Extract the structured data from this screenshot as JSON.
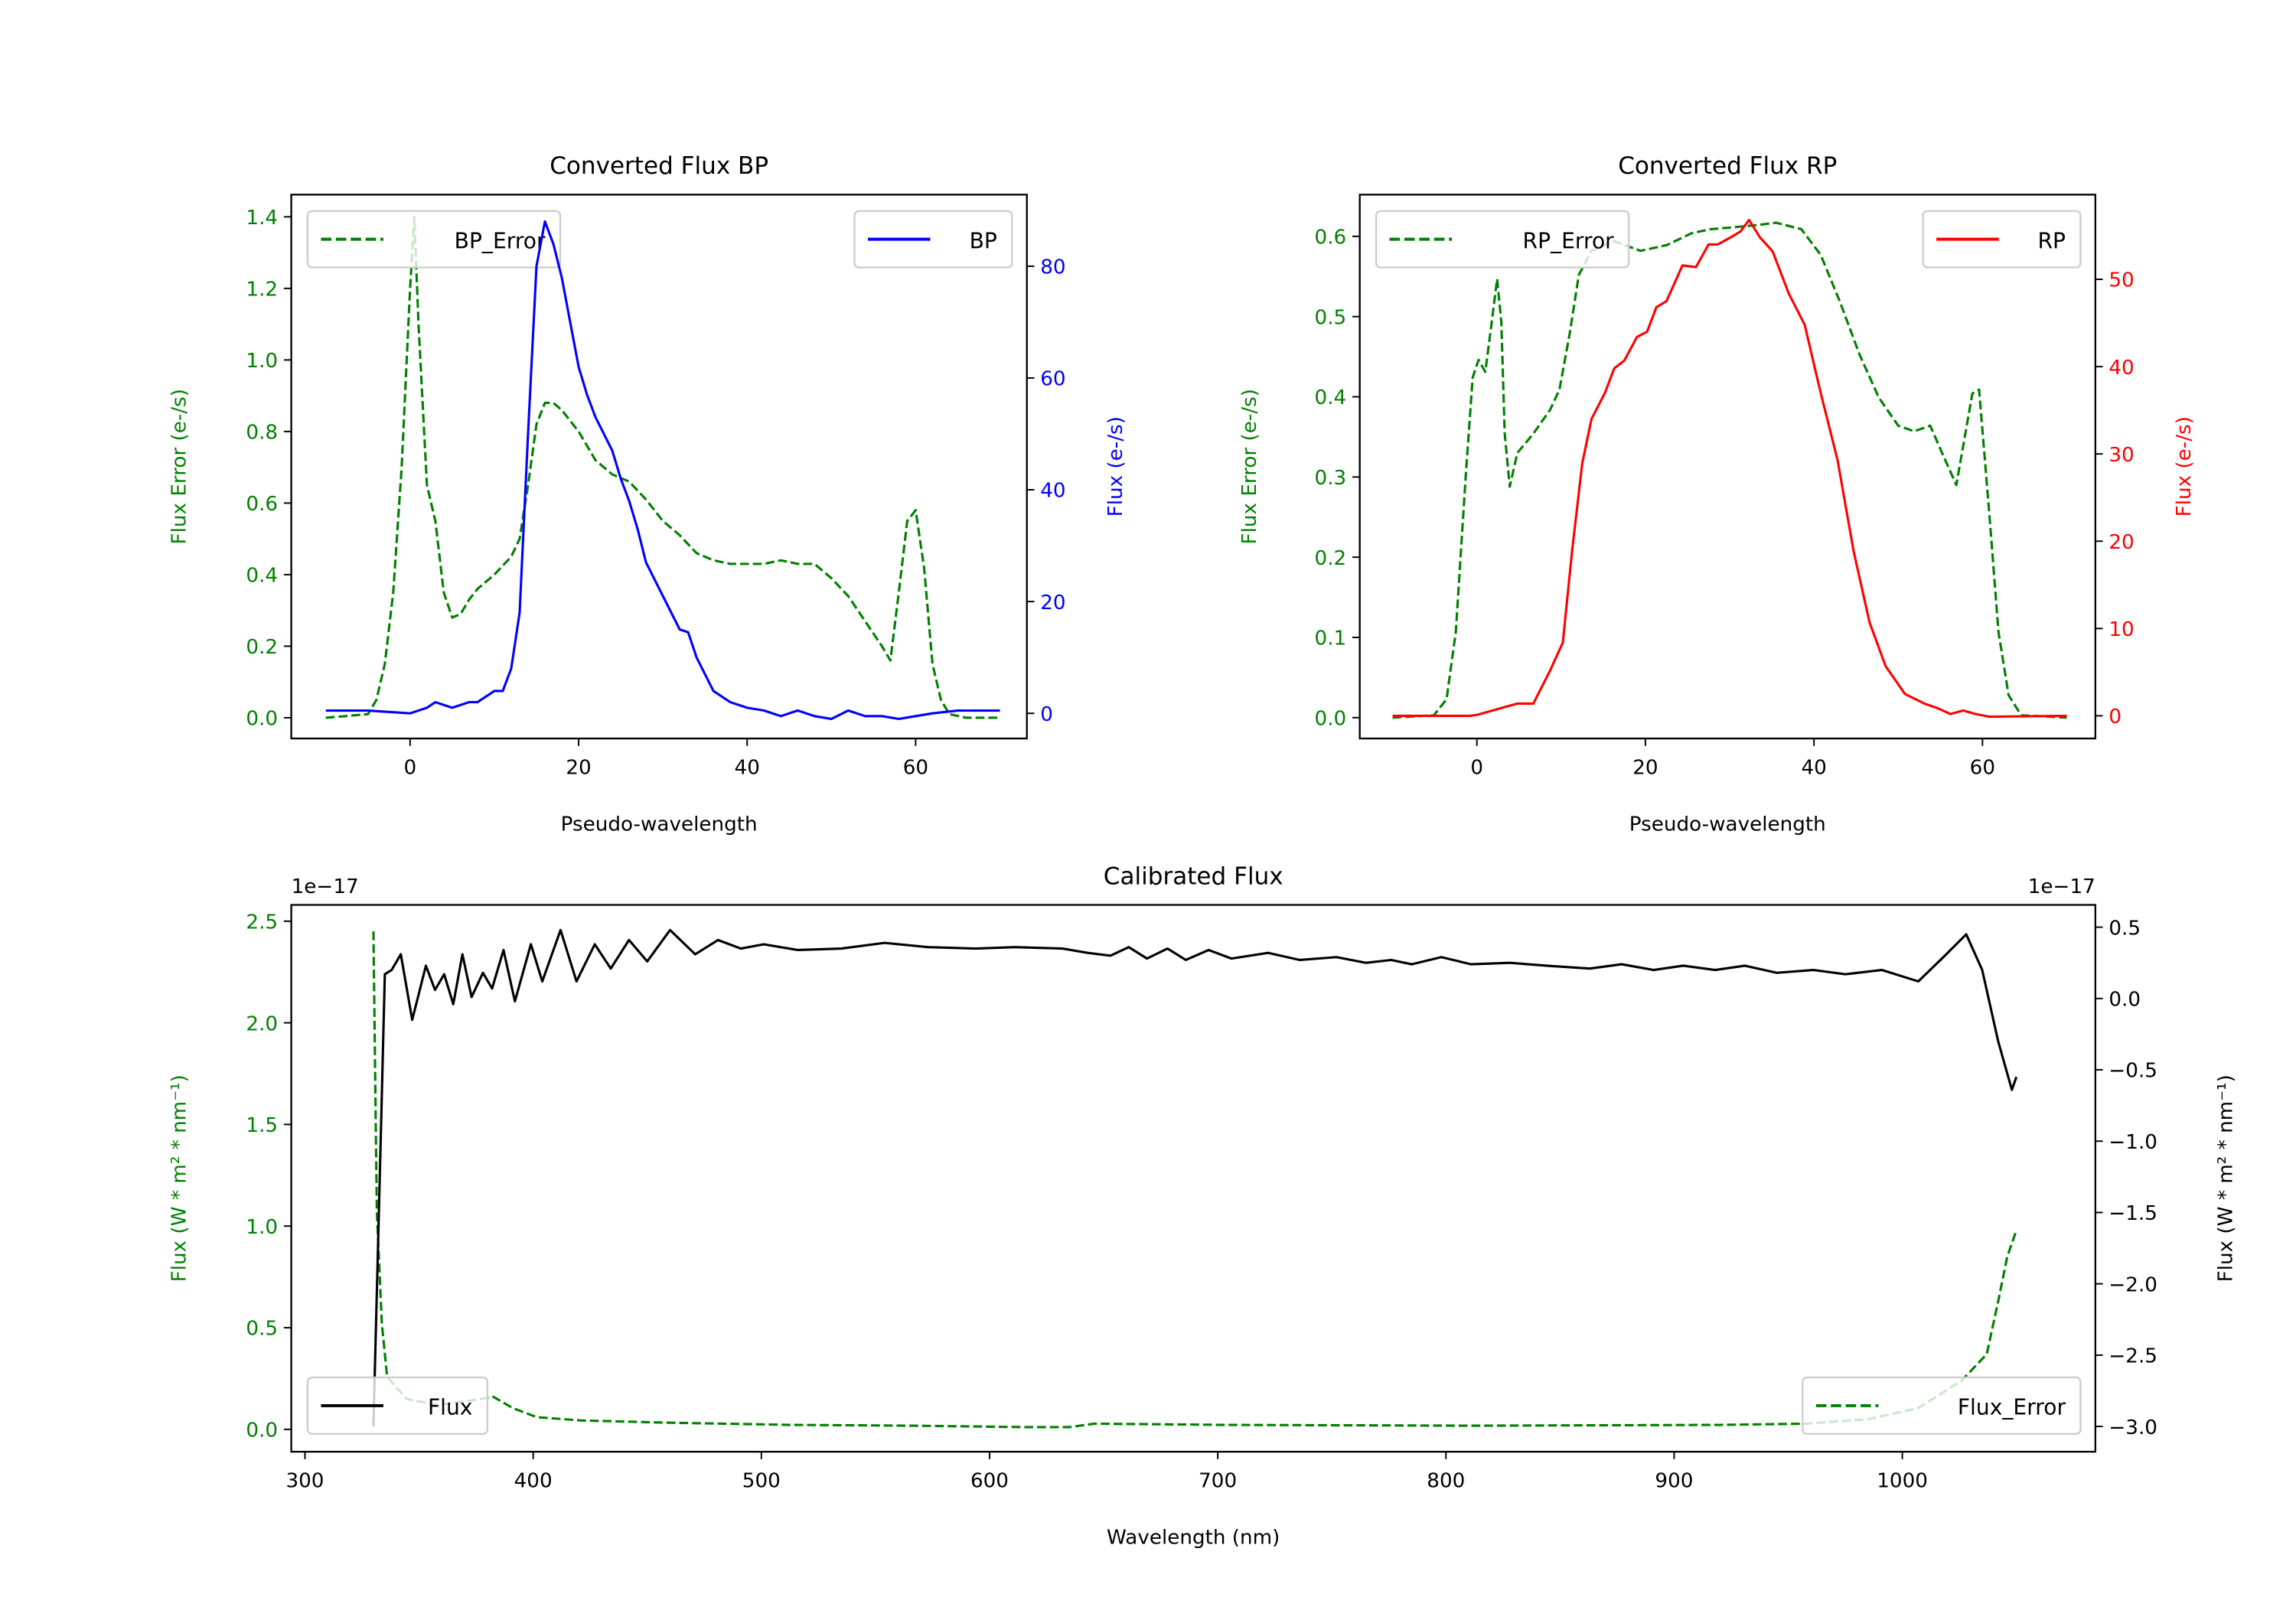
{
  "colors": {
    "green": "#008000",
    "blue": "#0000ff",
    "red": "#ff0000",
    "black": "#000000"
  },
  "chart_data": [
    {
      "type": "line",
      "title": "Converted Flux BP",
      "xlabel": "Pseudo-wavelength",
      "xlim": [
        -14.1,
        73.2
      ],
      "xticks": [
        0,
        20,
        40,
        60
      ],
      "left_axis": {
        "label": "Flux Error (e-/s)",
        "color": "#008000",
        "ylim": [
          -0.058,
          1.462
        ],
        "ticks": [
          0.0,
          0.2,
          0.4,
          0.6,
          0.8,
          1.0,
          1.2,
          1.4
        ],
        "tick_labels": [
          "0.0",
          "0.2",
          "0.4",
          "0.6",
          "0.8",
          "1.0",
          "1.2",
          "1.4"
        ]
      },
      "right_axis": {
        "label": "Flux (e-/s)",
        "color": "#0000ff",
        "ylim": [
          -4.5,
          92.8
        ],
        "ticks": [
          0,
          20,
          40,
          60,
          80
        ],
        "tick_labels": [
          "0",
          "20",
          "40",
          "60",
          "80"
        ]
      },
      "series": [
        {
          "name": "BP_Error",
          "axis": "left",
          "color": "#008000",
          "style": "dashed",
          "legend": "upper-left",
          "x": [
            -10,
            -5,
            -4,
            -3,
            -2,
            -1,
            0,
            0.5,
            1,
            2,
            3,
            4,
            5,
            6,
            7,
            8,
            10,
            12,
            13,
            14,
            15,
            16,
            17,
            18,
            20,
            22,
            24,
            26,
            28,
            30,
            32,
            34,
            36,
            38,
            40,
            42,
            44,
            46,
            48,
            50,
            52,
            54,
            56,
            57,
            58,
            59,
            60,
            61,
            62,
            63,
            64,
            66,
            70
          ],
          "y": [
            0,
            0.01,
            0.05,
            0.15,
            0.35,
            0.7,
            1.2,
            1.4,
            1.1,
            0.65,
            0.55,
            0.35,
            0.28,
            0.29,
            0.33,
            0.36,
            0.4,
            0.45,
            0.5,
            0.65,
            0.82,
            0.88,
            0.88,
            0.86,
            0.8,
            0.72,
            0.68,
            0.66,
            0.61,
            0.55,
            0.51,
            0.46,
            0.44,
            0.43,
            0.43,
            0.43,
            0.44,
            0.43,
            0.43,
            0.39,
            0.34,
            0.27,
            0.2,
            0.16,
            0.35,
            0.55,
            0.58,
            0.42,
            0.15,
            0.05,
            0.01,
            0,
            0
          ]
        },
        {
          "name": "BP",
          "axis": "right",
          "color": "#0000ff",
          "style": "solid",
          "legend": "upper-right",
          "x": [
            -10,
            -5,
            0,
            2,
            3,
            5,
            7,
            8,
            10,
            11,
            12,
            13,
            14,
            15,
            16,
            17,
            18,
            19,
            20,
            21,
            22,
            24,
            25,
            26,
            27,
            28,
            30,
            32,
            33,
            34,
            36,
            38,
            40,
            42,
            44,
            46,
            48,
            50,
            52,
            54,
            56,
            58,
            60,
            62,
            65,
            70
          ],
          "y": [
            0.5,
            0.5,
            0,
            1,
            2,
            1,
            2,
            2,
            4,
            4,
            8,
            18,
            50,
            80,
            88,
            84,
            78,
            70,
            62,
            57,
            53,
            47,
            42,
            38,
            33,
            27,
            21,
            15,
            14.5,
            10,
            4,
            2,
            1,
            0.5,
            -0.5,
            0.5,
            -0.5,
            -1,
            0.5,
            -0.5,
            -0.5,
            -1,
            -0.5,
            0,
            0.5,
            0.5
          ]
        }
      ]
    },
    {
      "type": "line",
      "title": "Converted Flux RP",
      "xlabel": "Pseudo-wavelength",
      "xlim": [
        -13.9,
        73.4
      ],
      "xticks": [
        0,
        20,
        40,
        60
      ],
      "left_axis": {
        "label": "Flux Error (e-/s)",
        "color": "#008000",
        "ylim": [
          -0.026,
          0.652
        ],
        "ticks": [
          0.0,
          0.1,
          0.2,
          0.3,
          0.4,
          0.5,
          0.6
        ],
        "tick_labels": [
          "0.0",
          "0.1",
          "0.2",
          "0.3",
          "0.4",
          "0.5",
          "0.6"
        ]
      },
      "right_axis": {
        "label": "Flux (e-/s)",
        "color": "#ff0000",
        "ylim": [
          -2.6,
          59.7
        ],
        "ticks": [
          0,
          10,
          20,
          30,
          40,
          50
        ],
        "tick_labels": [
          "0",
          "10",
          "20",
          "30",
          "40",
          "50"
        ]
      },
      "series": [
        {
          "name": "RP_Error",
          "axis": "left",
          "color": "#008000",
          "style": "dashed",
          "legend": "upper-left",
          "x": [
            -10,
            -5.1,
            -3.6,
            -2.5,
            -1.3,
            -0.5,
            0.2,
            1,
            1.7,
            2.4,
            2.9,
            3.3,
            3.9,
            4.8,
            6.7,
            8.7,
            9.8,
            11,
            12.1,
            13.6,
            16.3,
            19.4,
            22.5,
            25.5,
            27.8,
            30.1,
            33.2,
            35.5,
            38.5,
            40.8,
            43.1,
            45.4,
            47.7,
            50,
            51.9,
            53.8,
            55,
            56.9,
            58.8,
            59.6,
            60.8,
            61.9,
            63.1,
            64.6,
            70
          ],
          "y": [
            0,
            0.003,
            0.023,
            0.107,
            0.305,
            0.424,
            0.446,
            0.431,
            0.488,
            0.547,
            0.493,
            0.354,
            0.288,
            0.33,
            0.354,
            0.384,
            0.409,
            0.478,
            0.552,
            0.582,
            0.594,
            0.582,
            0.589,
            0.604,
            0.609,
            0.611,
            0.614,
            0.617,
            0.609,
            0.577,
            0.518,
            0.453,
            0.399,
            0.364,
            0.357,
            0.364,
            0.335,
            0.29,
            0.404,
            0.409,
            0.256,
            0.107,
            0.028,
            0.003,
            0
          ]
        },
        {
          "name": "RP",
          "axis": "right",
          "color": "#ff0000",
          "style": "solid",
          "legend": "upper-right",
          "x": [
            -10,
            -0.9,
            0,
            4.8,
            6.7,
            8.7,
            10.2,
            11.3,
            12.5,
            13.6,
            15.2,
            16.3,
            17.5,
            19,
            20.2,
            21.3,
            22.5,
            24.4,
            26,
            27.5,
            28.6,
            30.1,
            31.3,
            32.3,
            33.6,
            35.1,
            37,
            38.9,
            40.8,
            42.8,
            44.7,
            46.6,
            48.5,
            50.8,
            53.1,
            54.6,
            56.2,
            57.7,
            59.2,
            60.8,
            70
          ],
          "y": [
            0,
            0,
            0.1,
            1.4,
            1.4,
            5.2,
            8.4,
            18.9,
            28.9,
            34,
            37,
            39.8,
            40.7,
            43.4,
            44,
            46.8,
            47.5,
            51.6,
            51.4,
            54,
            54,
            54.8,
            55.5,
            56.8,
            54.8,
            53.2,
            48.4,
            44.8,
            37,
            29.3,
            18.9,
            10.7,
            5.7,
            2.5,
            1.4,
            0.9,
            0.2,
            0.6,
            0.2,
            -0.1,
            0
          ]
        }
      ]
    },
    {
      "type": "line",
      "title": "Calibrated Flux",
      "xlabel": "Wavelength (nm)",
      "xlim": [
        294,
        1084.6
      ],
      "xticks": [
        300,
        400,
        500,
        600,
        700,
        800,
        900,
        1000
      ],
      "left_axis": {
        "label": "Flux (W * m² * nm⁻¹)",
        "color": "#008000",
        "offset_text": "1e−17",
        "ylim": [
          -0.11,
          2.58
        ],
        "ticks": [
          0,
          0.5,
          1.0,
          1.5,
          2.0,
          2.5
        ],
        "tick_labels": [
          "0.0",
          "0.5",
          "1.0",
          "1.5",
          "2.0",
          "2.5"
        ]
      },
      "right_axis": {
        "label": "Flux (W * m² * nm⁻¹)",
        "color": "#000000",
        "offset_text": "1e−17",
        "ylim": [
          -3.177,
          0.656
        ],
        "ticks": [
          0.5,
          0,
          -0.5,
          -1.0,
          -1.5,
          -2.0,
          -2.5,
          -3.0
        ],
        "tick_labels": [
          "0.5",
          "0.0",
          "−0.5",
          "−1.0",
          "−1.5",
          "−2.0",
          "−2.5",
          "−3.0"
        ]
      },
      "series": [
        {
          "name": "Flux",
          "axis": "right",
          "color": "#000000",
          "style": "solid",
          "legend": "lower-left",
          "x": [
            330,
            332.9,
            335,
            338,
            342,
            347,
            353,
            357,
            361,
            365,
            369,
            373,
            378,
            382,
            387,
            392,
            399,
            404,
            412,
            419,
            427,
            434,
            442,
            450,
            460,
            471,
            481,
            491,
            501,
            516,
            535,
            554,
            573,
            594,
            611,
            632,
            643,
            653,
            661,
            669,
            678,
            686,
            696,
            706,
            722,
            736,
            752,
            765,
            776,
            785,
            798,
            811,
            828,
            844,
            863,
            877,
            891,
            904,
            918,
            931,
            945,
            961,
            975,
            991,
            1007,
            1018,
            1028,
            1035,
            1042,
            1048,
            1050
          ],
          "y": [
            -3.0,
            -1.18,
            0.17,
            0.2,
            0.31,
            -0.15,
            0.23,
            0.06,
            0.17,
            -0.04,
            0.31,
            0.01,
            0.18,
            0.07,
            0.34,
            -0.02,
            0.38,
            0.12,
            0.48,
            0.12,
            0.38,
            0.21,
            0.41,
            0.26,
            0.48,
            0.31,
            0.41,
            0.35,
            0.38,
            0.34,
            0.35,
            0.39,
            0.36,
            0.35,
            0.36,
            0.35,
            0.32,
            0.3,
            0.36,
            0.28,
            0.35,
            0.27,
            0.34,
            0.28,
            0.32,
            0.27,
            0.29,
            0.25,
            0.27,
            0.24,
            0.29,
            0.24,
            0.25,
            0.23,
            0.21,
            0.24,
            0.2,
            0.23,
            0.2,
            0.23,
            0.18,
            0.2,
            0.17,
            0.2,
            0.12,
            0.29,
            0.45,
            0.2,
            -0.3,
            -0.64,
            -0.55
          ]
        },
        {
          "name": "Flux_Error",
          "axis": "left",
          "color": "#008000",
          "style": "dashed",
          "legend": "lower-right",
          "x": [
            330,
            331.5,
            333.7,
            336,
            344.5,
            358,
            371.7,
            382.6,
            391,
            401.6,
            420.6,
            458.6,
            512.9,
            567,
            616,
            635,
            646,
            703,
            811,
            920,
            958,
            985,
            1007,
            1026,
            1037,
            1042,
            1046,
            1050
          ],
          "y": [
            2.45,
            1.07,
            0.52,
            0.26,
            0.15,
            0.12,
            0.14,
            0.16,
            0.105,
            0.06,
            0.044,
            0.033,
            0.022,
            0.018,
            0.011,
            0.011,
            0.028,
            0.022,
            0.018,
            0.022,
            0.028,
            0.05,
            0.105,
            0.24,
            0.37,
            0.63,
            0.85,
            0.98
          ]
        }
      ]
    }
  ]
}
